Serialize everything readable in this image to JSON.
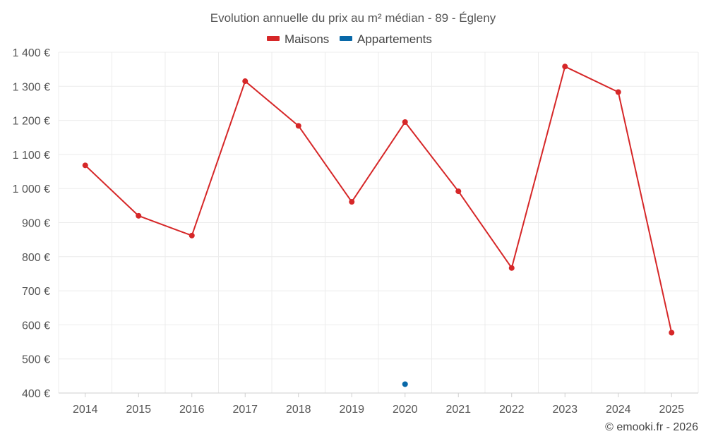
{
  "chart_data": {
    "type": "line",
    "title": "Evolution annuelle du prix au m² médian - 89 - Égleny",
    "x": [
      "2014",
      "2015",
      "2016",
      "2017",
      "2018",
      "2019",
      "2020",
      "2021",
      "2022",
      "2023",
      "2024",
      "2025"
    ],
    "ylim": [
      400,
      1400
    ],
    "yticks": [
      400,
      500,
      600,
      700,
      800,
      900,
      1000,
      1100,
      1200,
      1300,
      1400
    ],
    "ytick_labels": [
      "400 €",
      "500 €",
      "600 €",
      "700 €",
      "800 €",
      "900 €",
      "1 000 €",
      "1 100 €",
      "1 200 €",
      "1 300 €",
      "1 400 €"
    ],
    "grid": true,
    "legend_position": "top-center",
    "series": [
      {
        "name": "Maisons",
        "color": "#d62728",
        "values": [
          1068,
          920,
          862,
          1315,
          1184,
          961,
          1195,
          992,
          767,
          1358,
          1283,
          577
        ]
      },
      {
        "name": "Appartements",
        "color": "#0868a8",
        "values": [
          null,
          null,
          null,
          null,
          null,
          null,
          426,
          null,
          null,
          null,
          null,
          null
        ]
      }
    ]
  },
  "credit": "© emooki.fr - 2026"
}
